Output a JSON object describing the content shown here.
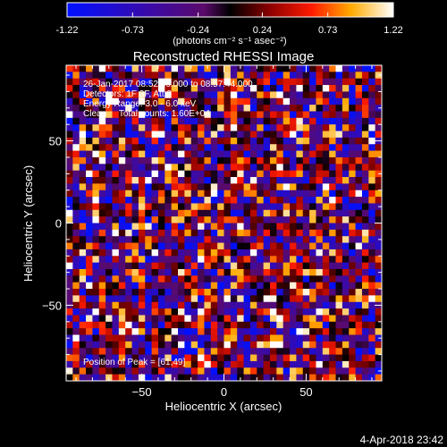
{
  "colorbar": {
    "ticks": [
      "-1.22",
      "-0.73",
      "-0.24",
      "0.24",
      "0.73",
      "1.22"
    ],
    "tick_values": [
      -1.22,
      -0.73,
      -0.24,
      0.24,
      0.73,
      1.22
    ],
    "range": [
      -1.22,
      1.22
    ],
    "unit_label": "(photons cm⁻² s⁻¹ asec⁻²)"
  },
  "chart_data": {
    "type": "heatmap",
    "title": "Reconstructed RHESSI Image",
    "xlabel": "Heliocentric X (arcsec)",
    "ylabel": "Heliocentric Y (arcsec)",
    "xlim": [
      -96,
      96
    ],
    "ylim": [
      -96,
      96
    ],
    "x_ticks": [
      "−50",
      "0",
      "50"
    ],
    "x_tick_values": [
      -50,
      0,
      50
    ],
    "y_ticks": [
      "50",
      "0",
      "−50"
    ],
    "y_tick_values": [
      50,
      0,
      -50
    ],
    "grid": false,
    "pixel_size_arcsec": 4,
    "peak_position": [
      61,
      49
    ],
    "annotations": [
      "26-Jan-2017 08:52:56.000 to 08:57:44.000",
      "Detectors: 1F 3F, Att 0",
      "Energy Range: 3.0 - 6.0 keV",
      "Clean     Total counts: 1.60E+04"
    ],
    "peak_label": "Position of Peak = [61,49]"
  },
  "footer": {
    "date": "4-Apr-2018 23:42"
  }
}
